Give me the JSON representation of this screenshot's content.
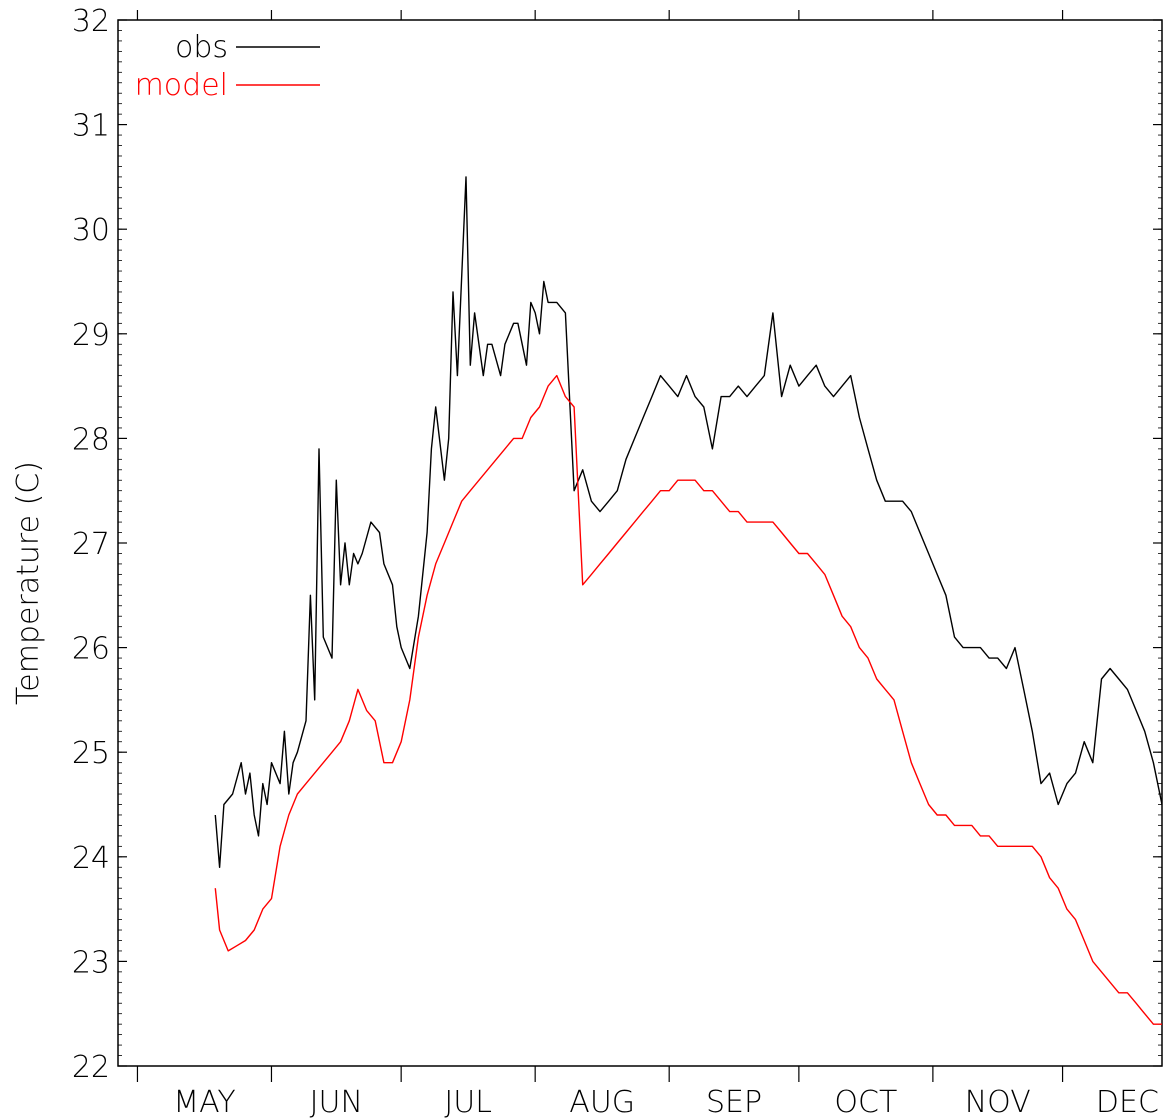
{
  "chart_data": {
    "type": "line",
    "title": "",
    "xlabel": "",
    "ylabel": "Temperature (C)",
    "ylim": [
      22,
      32
    ],
    "yticks": [
      22,
      23,
      24,
      25,
      26,
      27,
      28,
      29,
      30,
      31,
      32
    ],
    "x_unit": "day of year",
    "xlim": [
      116.5,
      358
    ],
    "months": [
      {
        "label": "MAY",
        "start": 121,
        "end": 152
      },
      {
        "label": "JUN",
        "start": 152,
        "end": 182
      },
      {
        "label": "JUL",
        "start": 182,
        "end": 213
      },
      {
        "label": "AUG",
        "start": 213,
        "end": 244
      },
      {
        "label": "SEP",
        "start": 244,
        "end": 274
      },
      {
        "label": "OCT",
        "start": 274,
        "end": 305
      },
      {
        "label": "NOV",
        "start": 305,
        "end": 335
      },
      {
        "label": "DEC",
        "start": 335,
        "end": 366
      }
    ],
    "legend": {
      "position": "top-left"
    },
    "grid": false,
    "series": [
      {
        "name": "obs",
        "color": "#000000",
        "x": [
          139,
          140,
          141,
          143,
          145,
          146,
          147,
          148,
          149,
          150,
          151,
          152,
          154,
          155,
          156,
          157,
          158,
          160,
          161,
          162,
          163,
          164,
          166,
          167,
          168,
          169,
          170,
          171,
          172,
          173,
          175,
          177,
          178,
          180,
          181,
          182,
          184,
          186,
          188,
          189,
          190,
          192,
          193,
          194,
          195,
          197,
          198,
          199,
          201,
          202,
          203,
          205,
          206,
          208,
          209,
          211,
          212,
          213,
          214,
          215,
          216,
          218,
          220,
          222,
          224,
          226,
          228,
          230,
          232,
          234,
          236,
          238,
          240,
          242,
          244,
          246,
          248,
          250,
          252,
          254,
          256,
          258,
          260,
          262,
          264,
          266,
          268,
          270,
          272,
          274,
          276,
          278,
          280,
          282,
          284,
          286,
          288,
          290,
          292,
          294,
          296,
          298,
          300,
          302,
          304,
          306,
          308,
          310,
          312,
          314,
          316,
          318,
          320,
          322,
          324,
          326,
          328,
          330,
          332,
          334,
          336,
          338,
          340,
          342,
          344,
          346,
          348,
          350,
          352,
          354,
          356,
          358
        ],
        "y": [
          24.4,
          23.9,
          24.5,
          24.6,
          24.9,
          24.6,
          24.8,
          24.4,
          24.2,
          24.7,
          24.5,
          24.9,
          24.7,
          25.2,
          24.6,
          24.9,
          25.0,
          25.3,
          26.5,
          25.5,
          27.9,
          26.1,
          25.9,
          27.6,
          26.6,
          27.0,
          26.6,
          26.9,
          26.8,
          26.9,
          27.2,
          27.1,
          26.8,
          26.6,
          26.2,
          26.0,
          25.8,
          26.3,
          27.1,
          27.9,
          28.3,
          27.6,
          28.0,
          29.4,
          28.6,
          30.5,
          28.7,
          29.2,
          28.6,
          28.9,
          28.9,
          28.6,
          28.9,
          29.1,
          29.1,
          28.7,
          29.3,
          29.2,
          29.0,
          29.5,
          29.3,
          29.3,
          29.2,
          27.5,
          27.7,
          27.4,
          27.3,
          27.4,
          27.5,
          27.8,
          28.0,
          28.2,
          28.4,
          28.6,
          28.5,
          28.4,
          28.6,
          28.4,
          28.3,
          27.9,
          28.4,
          28.4,
          28.5,
          28.4,
          28.5,
          28.6,
          29.2,
          28.4,
          28.7,
          28.5,
          28.6,
          28.7,
          28.5,
          28.4,
          28.5,
          28.6,
          28.2,
          27.9,
          27.6,
          27.4,
          27.4,
          27.4,
          27.3,
          27.1,
          26.9,
          26.7,
          26.5,
          26.1,
          26.0,
          26.0,
          26.0,
          25.9,
          25.9,
          25.8,
          26.0,
          25.6,
          25.2,
          24.7,
          24.8,
          24.5,
          24.7,
          24.8,
          25.1,
          24.9,
          25.7,
          25.8,
          25.7,
          25.6,
          25.4,
          25.2,
          24.9,
          24.5
        ]
      },
      {
        "name": "model",
        "color": "#ff0000",
        "x": [
          139,
          140,
          142,
          144,
          146,
          148,
          150,
          152,
          154,
          156,
          158,
          160,
          162,
          164,
          166,
          168,
          170,
          172,
          174,
          176,
          178,
          180,
          182,
          184,
          186,
          188,
          190,
          192,
          194,
          196,
          198,
          200,
          202,
          204,
          206,
          208,
          210,
          212,
          214,
          216,
          218,
          220,
          222,
          224,
          226,
          228,
          230,
          232,
          234,
          236,
          238,
          240,
          242,
          244,
          246,
          248,
          250,
          252,
          254,
          256,
          258,
          260,
          262,
          264,
          266,
          268,
          270,
          272,
          274,
          276,
          278,
          280,
          282,
          284,
          286,
          288,
          290,
          292,
          294,
          296,
          298,
          300,
          302,
          304,
          306,
          308,
          310,
          312,
          314,
          316,
          318,
          320,
          322,
          324,
          326,
          328,
          330,
          332,
          334,
          336,
          338,
          340,
          342,
          344,
          346,
          348,
          350,
          352,
          354,
          356,
          358
        ],
        "y": [
          23.7,
          23.3,
          23.1,
          23.15,
          23.2,
          23.3,
          23.5,
          23.6,
          24.1,
          24.4,
          24.6,
          24.7,
          24.8,
          24.9,
          25.0,
          25.1,
          25.3,
          25.6,
          25.4,
          25.3,
          24.9,
          24.9,
          25.1,
          25.5,
          26.1,
          26.5,
          26.8,
          27.0,
          27.2,
          27.4,
          27.5,
          27.6,
          27.7,
          27.8,
          27.9,
          28.0,
          28.0,
          28.2,
          28.3,
          28.5,
          28.6,
          28.4,
          28.3,
          26.6,
          26.7,
          26.8,
          26.9,
          27.0,
          27.1,
          27.2,
          27.3,
          27.4,
          27.5,
          27.5,
          27.6,
          27.6,
          27.6,
          27.5,
          27.5,
          27.4,
          27.3,
          27.3,
          27.2,
          27.2,
          27.2,
          27.2,
          27.1,
          27.0,
          26.9,
          26.9,
          26.8,
          26.7,
          26.5,
          26.3,
          26.2,
          26.0,
          25.9,
          25.7,
          25.6,
          25.5,
          25.2,
          24.9,
          24.7,
          24.5,
          24.4,
          24.4,
          24.3,
          24.3,
          24.3,
          24.2,
          24.2,
          24.1,
          24.1,
          24.1,
          24.1,
          24.1,
          24.0,
          23.8,
          23.7,
          23.5,
          23.4,
          23.2,
          23.0,
          22.9,
          22.8,
          22.7,
          22.7,
          22.6,
          22.5,
          22.4,
          22.4
        ]
      }
    ]
  }
}
